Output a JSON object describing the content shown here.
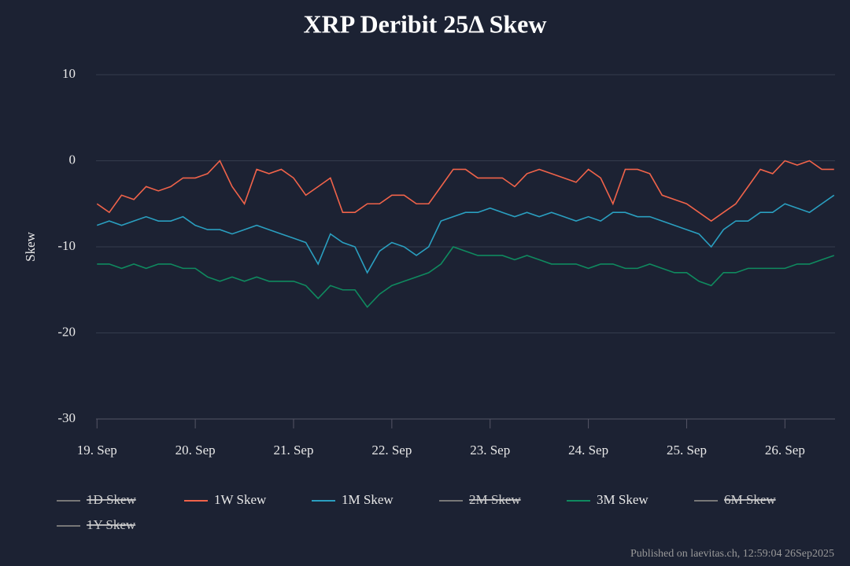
{
  "chart_data": {
    "type": "line",
    "title": "XRP Deribit 25Δ Skew",
    "y_label": "Skew",
    "x": [
      19,
      19.125,
      19.25,
      19.375,
      19.5,
      19.625,
      19.75,
      19.875,
      20,
      20.125,
      20.25,
      20.375,
      20.5,
      20.625,
      20.75,
      20.875,
      21,
      21.125,
      21.25,
      21.375,
      21.5,
      21.625,
      21.75,
      21.875,
      22,
      22.125,
      22.25,
      22.375,
      22.5,
      22.625,
      22.75,
      22.875,
      23,
      23.125,
      23.25,
      23.375,
      23.5,
      23.625,
      23.75,
      23.875,
      24,
      24.125,
      24.25,
      24.375,
      24.5,
      24.625,
      24.75,
      24.875,
      25,
      25.125,
      25.25,
      25.375,
      25.5,
      25.625,
      25.75,
      25.875,
      26,
      26.125,
      26.25,
      26.375,
      26.5
    ],
    "xlim": [
      18.99,
      26.51
    ],
    "xticks": [
      {
        "value": 19,
        "label": "19. Sep"
      },
      {
        "value": 20,
        "label": "20. Sep"
      },
      {
        "value": 21,
        "label": "21. Sep"
      },
      {
        "value": 22,
        "label": "22. Sep"
      },
      {
        "value": 23,
        "label": "23. Sep"
      },
      {
        "value": 24,
        "label": "24. Sep"
      },
      {
        "value": 25,
        "label": "25. Sep"
      },
      {
        "value": 26,
        "label": "26. Sep"
      }
    ],
    "ylim": [
      -30,
      10
    ],
    "yticks": [
      -30,
      -20,
      -10,
      0,
      10
    ],
    "grid": true,
    "series": [
      {
        "name": "1D Skew",
        "visible": false
      },
      {
        "name": "1W Skew",
        "color": "#f0634a",
        "values": [
          -5,
          -6,
          -4,
          -4.5,
          -3,
          -3.5,
          -3,
          -2,
          -2,
          -1.5,
          0,
          -3,
          -5,
          -1,
          -1.5,
          -1,
          -2,
          -4,
          -3,
          -2,
          -6,
          -6,
          -5,
          -5,
          -4,
          -4,
          -5,
          -5,
          -3,
          -1,
          -1,
          -2,
          -2,
          -2,
          -3,
          -1.5,
          -1,
          -1.5,
          -2,
          -2.5,
          -1,
          -2,
          -5,
          -1,
          -1,
          -1.5,
          -4,
          -4.5,
          -5,
          -6,
          -7,
          -6,
          -5,
          -3,
          -1,
          -1.5,
          0,
          -0.5,
          0,
          -1,
          -1
        ]
      },
      {
        "name": "1M Skew",
        "color": "#2a9fc0",
        "values": [
          -7.5,
          -7,
          -7.5,
          -7,
          -6.5,
          -7,
          -7,
          -6.5,
          -7.5,
          -8,
          -8,
          -8.5,
          -8,
          -7.5,
          -8,
          -8.5,
          -9,
          -9.5,
          -12,
          -8.5,
          -9.5,
          -10,
          -13,
          -10.5,
          -9.5,
          -10,
          -11,
          -10,
          -7,
          -6.5,
          -6,
          -6,
          -5.5,
          -6,
          -6.5,
          -6,
          -6.5,
          -6,
          -6.5,
          -7,
          -6.5,
          -7,
          -6,
          -6,
          -6.5,
          -6.5,
          -7,
          -7.5,
          -8,
          -8.5,
          -10,
          -8,
          -7,
          -7,
          -6,
          -6,
          -5,
          -5.5,
          -6,
          -5,
          -4
        ]
      },
      {
        "name": "2M Skew",
        "visible": false
      },
      {
        "name": "3M Skew",
        "color": "#0f8a5f",
        "values": [
          -12,
          -12,
          -12.5,
          -12,
          -12.5,
          -12,
          -12,
          -12.5,
          -12.5,
          -13.5,
          -14,
          -13.5,
          -14,
          -13.5,
          -14,
          -14,
          -14,
          -14.5,
          -16,
          -14.5,
          -15,
          -15,
          -17,
          -15.5,
          -14.5,
          -14,
          -13.5,
          -13,
          -12,
          -10,
          -10.5,
          -11,
          -11,
          -11,
          -11.5,
          -11,
          -11.5,
          -12,
          -12,
          -12,
          -12.5,
          -12,
          -12,
          -12.5,
          -12.5,
          -12,
          -12.5,
          -13,
          -13,
          -14,
          -14.5,
          -13,
          -13,
          -12.5,
          -12.5,
          -12.5,
          -12.5,
          -12,
          -12,
          -11.5,
          -11
        ]
      },
      {
        "name": "6M Skew",
        "visible": false
      },
      {
        "name": "1Y Skew",
        "visible": false
      }
    ],
    "footer": "Published on laevitas.ch, 12:59:04 26Sep2025"
  }
}
